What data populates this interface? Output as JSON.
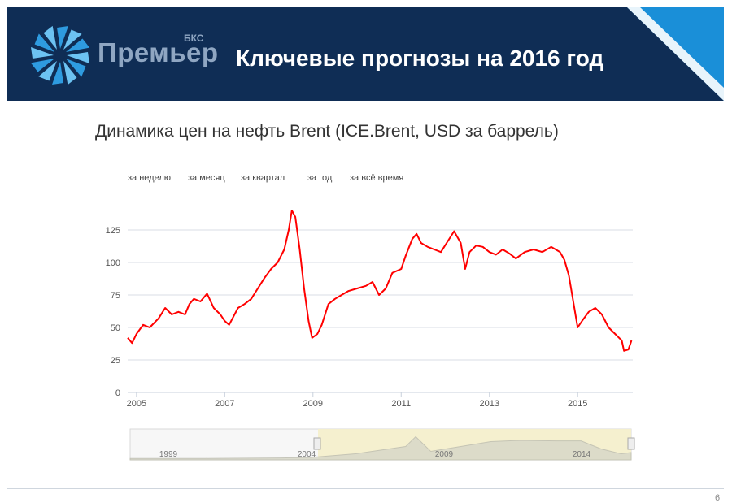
{
  "header": {
    "brand_name": "Премьер",
    "brand_sup": "БКС",
    "title": "Ключевые прогнозы на 2016 год"
  },
  "subtitle": "Динамика цен на нефть Brent (ICE.Brent, USD за баррель)",
  "range_buttons": [
    "за неделю",
    "за месяц",
    "за квартал",
    "за год",
    "за всё время"
  ],
  "page_number": "6",
  "colors": {
    "header_bg": "#0f2d55",
    "accent": "#1a8fd8",
    "line": "#ff0000"
  },
  "chart_data": {
    "type": "line",
    "title": "",
    "xlabel": "",
    "ylabel": "",
    "xlim": [
      2004.8,
      2016.25
    ],
    "ylim": [
      0,
      150
    ],
    "yticks": [
      0,
      25,
      50,
      75,
      100,
      125
    ],
    "xticks": [
      "2005",
      "2007",
      "2009",
      "2011",
      "2013",
      "2015"
    ],
    "grid": true,
    "series": [
      {
        "x": [
          2004.8,
          2004.9,
          2005.0,
          2005.15,
          2005.3,
          2005.5,
          2005.65,
          2005.8,
          2005.95,
          2006.1,
          2006.2,
          2006.3,
          2006.45,
          2006.6,
          2006.75,
          2006.9,
          2007.0,
          2007.1,
          2007.3,
          2007.45,
          2007.6,
          2007.75,
          2007.9,
          2008.05,
          2008.2,
          2008.35,
          2008.45,
          2008.52,
          2008.6,
          2008.7,
          2008.8,
          2008.9,
          2008.98,
          2009.1,
          2009.2,
          2009.35,
          2009.5,
          2009.65,
          2009.8,
          2010.0,
          2010.2,
          2010.35,
          2010.5,
          2010.65,
          2010.8,
          2011.0,
          2011.1,
          2011.25,
          2011.35,
          2011.45,
          2011.6,
          2011.75,
          2011.9,
          2012.05,
          2012.2,
          2012.35,
          2012.45,
          2012.55,
          2012.7,
          2012.85,
          2013.0,
          2013.15,
          2013.3,
          2013.45,
          2013.6,
          2013.8,
          2014.0,
          2014.2,
          2014.4,
          2014.5,
          2014.6,
          2014.7,
          2014.8,
          2014.9,
          2015.0,
          2015.1,
          2015.25,
          2015.4,
          2015.55,
          2015.7,
          2015.85,
          2016.0,
          2016.05,
          2016.15,
          2016.22
        ],
        "values": [
          42,
          38,
          45,
          52,
          50,
          57,
          65,
          60,
          62,
          60,
          68,
          72,
          70,
          76,
          65,
          60,
          55,
          52,
          65,
          68,
          72,
          80,
          88,
          95,
          100,
          110,
          125,
          140,
          135,
          110,
          80,
          55,
          42,
          45,
          52,
          68,
          72,
          75,
          78,
          80,
          82,
          85,
          75,
          80,
          92,
          95,
          105,
          118,
          122,
          115,
          112,
          110,
          108,
          116,
          124,
          115,
          95,
          108,
          113,
          112,
          108,
          106,
          110,
          107,
          103,
          108,
          110,
          108,
          112,
          110,
          108,
          102,
          90,
          70,
          50,
          55,
          62,
          65,
          60,
          50,
          45,
          40,
          32,
          33,
          40
        ]
      }
    ],
    "navigator": {
      "labels": [
        "1999",
        "2004",
        "2009",
        "2014"
      ]
    }
  }
}
